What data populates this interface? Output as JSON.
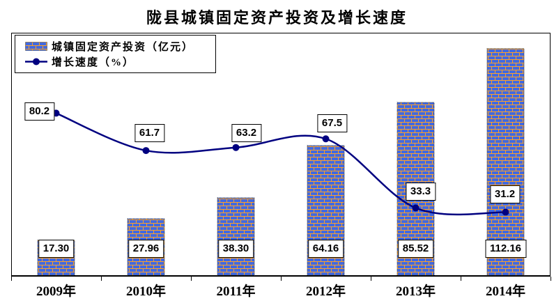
{
  "title": "陇县城镇固定资产投资及增长速度",
  "legend": {
    "items": [
      {
        "label": "城镇固定资产投资（亿元）",
        "marker": "brick-bar-swatch"
      },
      {
        "label": "增长速度（%）",
        "marker": "line-dot-swatch"
      }
    ]
  },
  "chart_data": {
    "type": "bar+line",
    "categories": [
      "2009年",
      "2010年",
      "2011年",
      "2012年",
      "2013年",
      "2014年"
    ],
    "series": [
      {
        "name": "城镇固定资产投资（亿元）",
        "type": "bar",
        "values": [
          17.3,
          27.96,
          38.3,
          64.16,
          85.52,
          112.16
        ],
        "labels": [
          "17.30",
          "27.96",
          "38.30",
          "64.16",
          "85.52",
          "112.16"
        ]
      },
      {
        "name": "增长速度（%）",
        "type": "line",
        "values": [
          80.2,
          61.7,
          63.2,
          67.5,
          33.3,
          31.2
        ],
        "labels": [
          "80.2",
          "61.7",
          "63.2",
          "67.5",
          "33.3",
          "31.2"
        ]
      }
    ],
    "ylim": [
      0,
      120
    ],
    "grid": false,
    "axis_labels_visible": false,
    "legend_position": "top-left-inside",
    "line_style": "smooth"
  },
  "colors": {
    "brick_fill": "#4169E1",
    "brick_mortar": "#FFA128",
    "bar_border": "#333333",
    "line": "#000080",
    "marker": "#000080",
    "label_box_bg": "#FFFFFF",
    "label_box_border": "#000000",
    "plot_border": "#000000",
    "text": "#000000"
  }
}
